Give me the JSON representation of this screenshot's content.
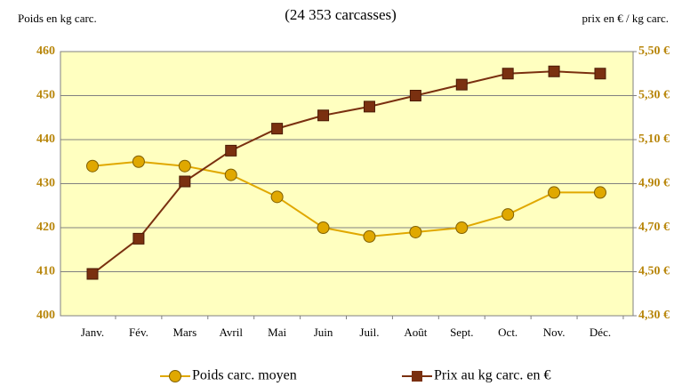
{
  "chart_data": {
    "type": "line",
    "subtitle": "(24 353 carcasses)",
    "ylabel": "Poids en kg carc.",
    "y2label": "prix en € / kg carc.",
    "categories": [
      "Janv.",
      "Fév.",
      "Mars",
      "Avril",
      "Mai",
      "Juin",
      "Juil.",
      "Août",
      "Sept.",
      "Oct.",
      "Nov.",
      "Déc."
    ],
    "series": [
      {
        "name": "Poids carc. moyen",
        "color": "#e0a800",
        "marker": "circle",
        "values": [
          434,
          435,
          434,
          432,
          427,
          420,
          418,
          419,
          420,
          423,
          428,
          428
        ]
      },
      {
        "name": "Prix au kg carc. en €",
        "color": "#7a3010",
        "marker": "square",
        "axis": "y2",
        "values": [
          4.49,
          4.65,
          4.91,
          5.05,
          5.15,
          5.21,
          5.25,
          5.3,
          5.35,
          5.4,
          5.41,
          5.4
        ]
      }
    ],
    "ylim": [
      400,
      460
    ],
    "yticks": [
      400,
      410,
      420,
      430,
      440,
      450,
      460
    ],
    "y2lim": [
      4.3,
      5.5
    ],
    "y2ticks": [
      {
        "value": 4.3,
        "label": "4,30 €"
      },
      {
        "value": 4.5,
        "label": "4,50 €"
      },
      {
        "value": 4.7,
        "label": "4,70 €"
      },
      {
        "value": 4.9,
        "label": "4,90 €"
      },
      {
        "value": 5.1,
        "label": "5,10 €"
      },
      {
        "value": 5.3,
        "label": "5,30 €"
      },
      {
        "value": 5.5,
        "label": "5,50 €"
      }
    ],
    "grid": true,
    "legend": "bottom",
    "background": "#ffffc0"
  }
}
